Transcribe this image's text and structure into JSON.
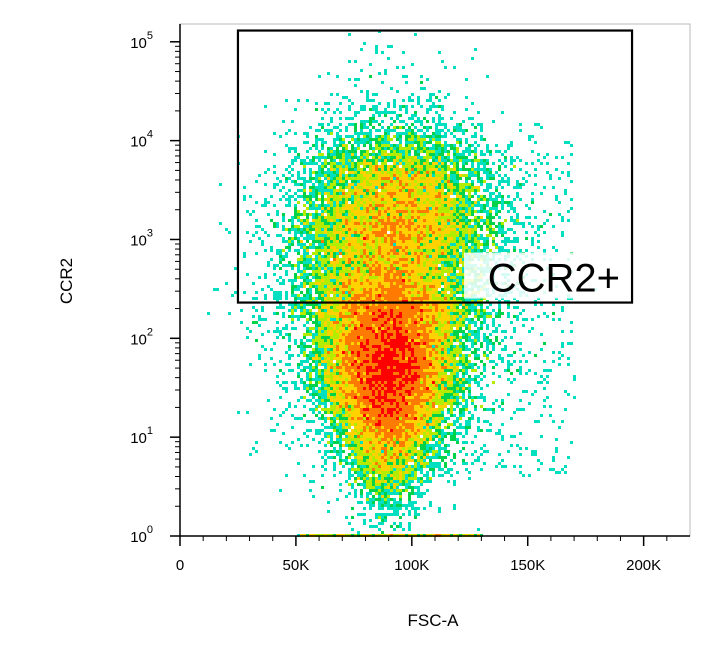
{
  "chart_data": {
    "type": "scatter",
    "subtype": "flow-cytometry pseudocolor density plot",
    "xlabel": "FSC-A",
    "ylabel": "CCR2",
    "xscale": "linear",
    "yscale": "log",
    "xlim": [
      0,
      220000
    ],
    "ylim": [
      1,
      150000
    ],
    "x_ticks": [
      {
        "value": 0,
        "label": "0"
      },
      {
        "value": 50000,
        "label": "50K"
      },
      {
        "value": 100000,
        "label": "100K"
      },
      {
        "value": 150000,
        "label": "150K"
      },
      {
        "value": 200000,
        "label": "200K"
      }
    ],
    "y_ticks": [
      {
        "value": 1,
        "base": "10",
        "exp": "0"
      },
      {
        "value": 10,
        "base": "10",
        "exp": "1"
      },
      {
        "value": 100,
        "base": "10",
        "exp": "2"
      },
      {
        "value": 1000,
        "base": "10",
        "exp": "3"
      },
      {
        "value": 10000,
        "base": "10",
        "exp": "4"
      },
      {
        "value": 100000,
        "base": "10",
        "exp": "5"
      }
    ],
    "grid": false,
    "legend": "none",
    "colormap": [
      "#0000ff",
      "#0066ff",
      "#00bfff",
      "#00e0c0",
      "#00d24a",
      "#b4ec00",
      "#ffd200",
      "#ff7a00",
      "#ff0000"
    ],
    "populations": [
      {
        "center_x": 90000,
        "center_log10_y": 1.75,
        "spread_x": 13000,
        "spread_log10_y": 0.55,
        "relative_density": 1.0
      },
      {
        "center_x": 93000,
        "center_log10_y": 3.35,
        "spread_x": 20000,
        "spread_log10_y": 0.35,
        "relative_density": 0.22
      }
    ],
    "gates": [
      {
        "name": "CCR2+",
        "x_range": [
          25000,
          195000
        ],
        "y_range": [
          230,
          130000
        ]
      }
    ]
  }
}
